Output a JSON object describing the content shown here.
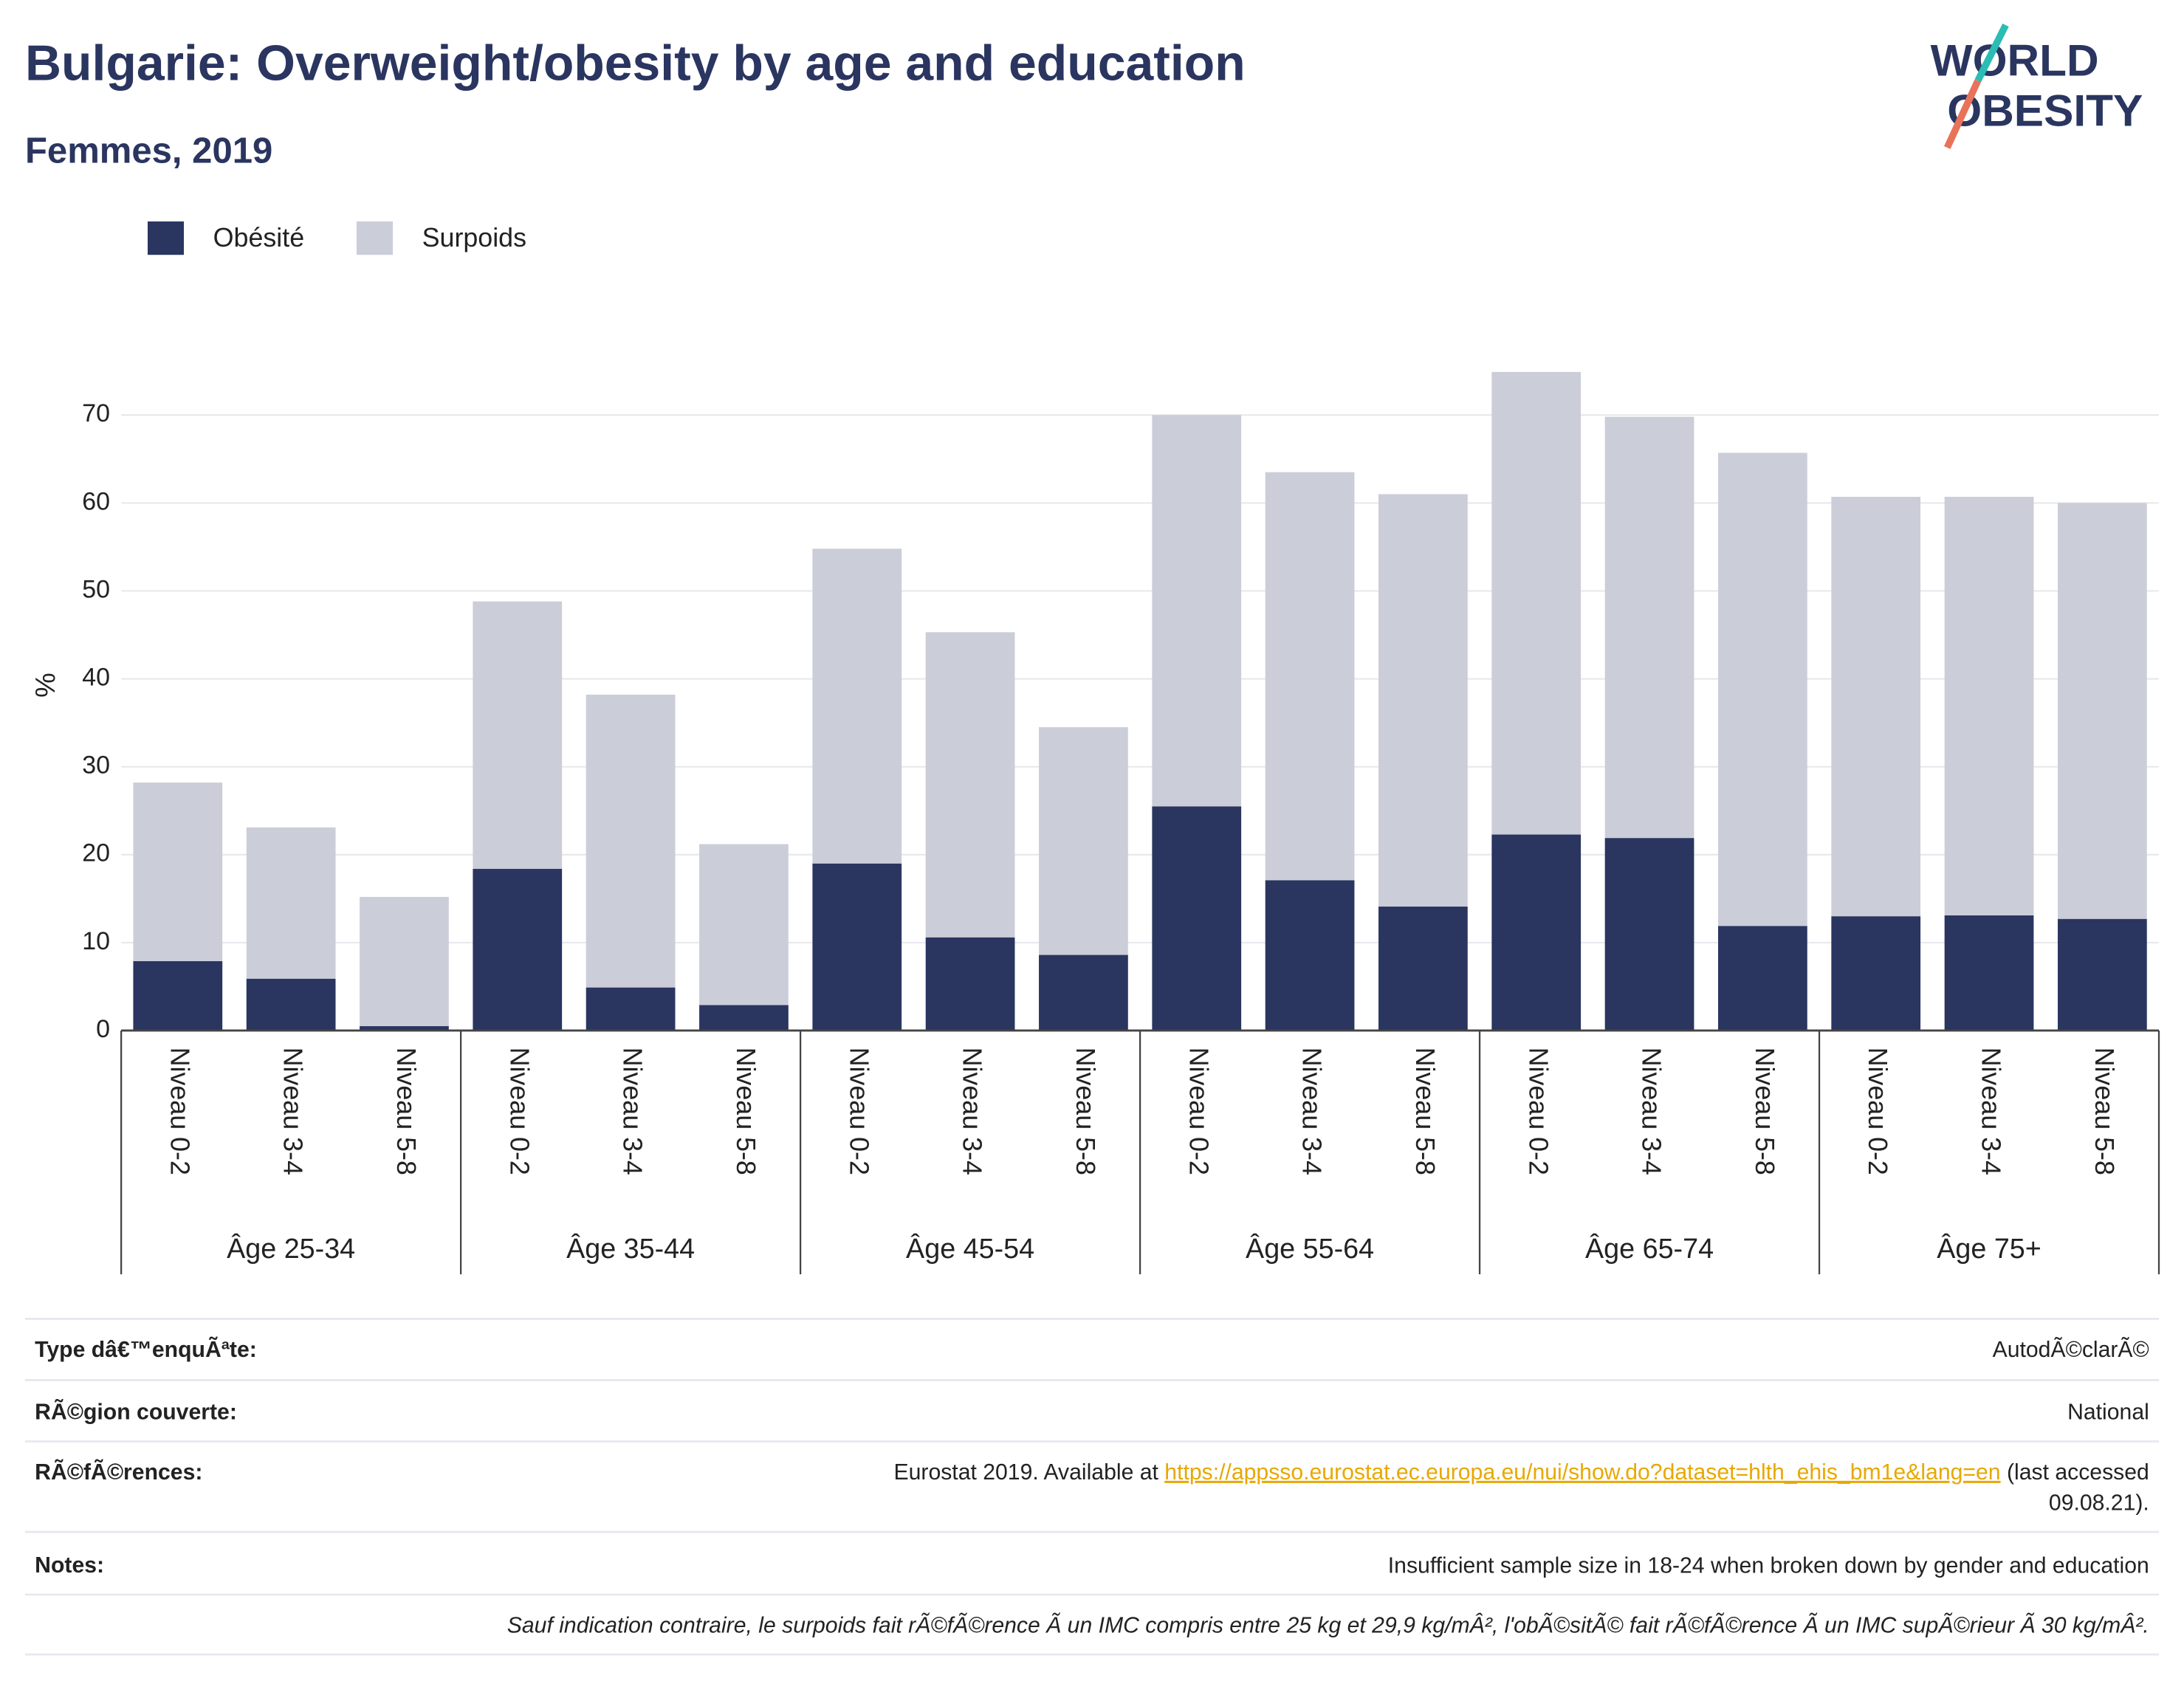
{
  "chart_data": {
    "type": "stacked_bar",
    "title": "Bulgarie: Overweight/obesity by age and education",
    "subtitle": "Femmes, 2019",
    "y_label": "%",
    "categories": [
      "Niveau 0-2",
      "Niveau 3-4",
      "Niveau 5-8",
      "Niveau 0-2",
      "Niveau 3-4",
      "Niveau 5-8",
      "Niveau 0-2",
      "Niveau 3-4",
      "Niveau 5-8",
      "Niveau 0-2",
      "Niveau 3-4",
      "Niveau 5-8",
      "Niveau 0-2",
      "Niveau 3-4",
      "Niveau 5-8",
      "Niveau 0-2",
      "Niveau 3-4",
      "Niveau 5-8"
    ],
    "groups": [
      "Âge 25-34",
      "Âge 35-44",
      "Âge 45-54",
      "Âge 55-64",
      "Âge 65-74",
      "Âge 75+"
    ],
    "series": [
      {
        "name": "Obésité",
        "color": "#2a3560",
        "values": [
          7.9,
          5.9,
          0.5,
          18.4,
          4.9,
          2.9,
          19.0,
          10.6,
          8.6,
          25.5,
          17.1,
          14.1,
          22.3,
          21.9,
          11.9,
          13.0,
          13.1,
          12.7
        ]
      },
      {
        "name": "Surpoids",
        "color": "#cbcdd8",
        "values": [
          20.3,
          17.2,
          14.7,
          30.4,
          33.3,
          18.3,
          35.8,
          34.7,
          25.9,
          44.5,
          46.4,
          46.9,
          52.6,
          47.9,
          53.8,
          47.7,
          47.6,
          47.3
        ]
      }
    ],
    "ylim": [
      0,
      76
    ],
    "yticks": [
      0,
      10,
      20,
      30,
      40,
      50,
      60,
      70
    ],
    "grid": true
  },
  "logo": {
    "line1": "WORLD",
    "line2": "OBESITY"
  },
  "info": {
    "rows": [
      {
        "label": "Type dâ€™enquÃªte:",
        "value": "AutodÃ©clarÃ©"
      },
      {
        "label": "RÃ©gion couverte:",
        "value": "National"
      },
      {
        "label": "RÃ©fÃ©rences:",
        "value": "Eurostat 2019. Available at ",
        "link": "https://appsso.eurostat.ec.europa.eu/nui/show.do?dataset=hlth_ehis_bm1e&lang=en",
        "after": " (last accessed",
        "after_line2": "09.08.21)."
      },
      {
        "label": "Notes:",
        "value": "Insufficient sample size in 18-24 when broken down by gender and education"
      }
    ],
    "footnote": "Sauf indication contraire, le surpoids fait rÃ©fÃ©rence Ã  un IMC compris entre 25 kg et 29,9 kg/mÂ², l'obÃ©sitÃ© fait rÃ©fÃ©rence Ã  un IMC supÃ©rieur Ã  30 kg/mÂ²."
  }
}
